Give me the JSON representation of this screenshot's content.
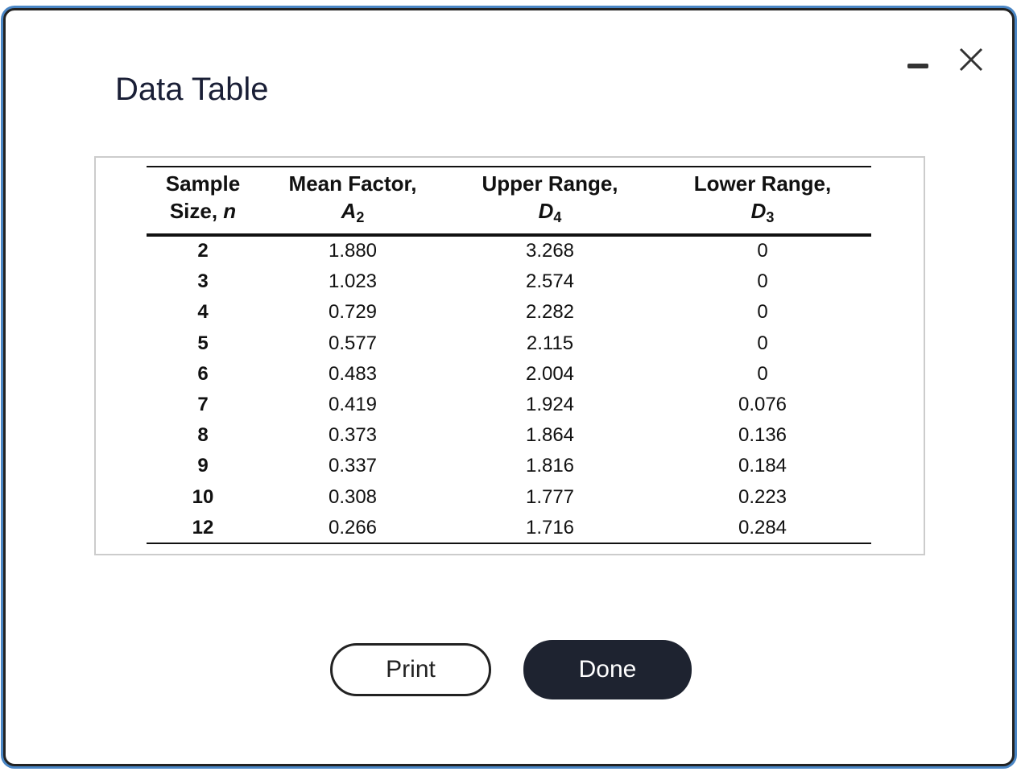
{
  "dialog": {
    "title": "Data Table",
    "table": {
      "headers": [
        {
          "lines": [
            "Sample",
            "Size,"
          ],
          "symbol": "n"
        },
        {
          "lines": [
            "Mean Factor,"
          ],
          "symbol": "A",
          "subscript": "2"
        },
        {
          "lines": [
            "Upper Range,"
          ],
          "symbol": "D",
          "subscript": "4"
        },
        {
          "lines": [
            "Lower Range,"
          ],
          "symbol": "D",
          "subscript": "3"
        }
      ],
      "rows": [
        [
          "2",
          "1.880",
          "3.268",
          "0"
        ],
        [
          "3",
          "1.023",
          "2.574",
          "0"
        ],
        [
          "4",
          "0.729",
          "2.282",
          "0"
        ],
        [
          "5",
          "0.577",
          "2.115",
          "0"
        ],
        [
          "6",
          "0.483",
          "2.004",
          "0"
        ],
        [
          "7",
          "0.419",
          "1.924",
          "0.076"
        ],
        [
          "8",
          "0.373",
          "1.864",
          "0.136"
        ],
        [
          "9",
          "0.337",
          "1.816",
          "0.184"
        ],
        [
          "10",
          "0.308",
          "1.777",
          "0.223"
        ],
        [
          "12",
          "0.266",
          "1.716",
          "0.284"
        ]
      ]
    },
    "buttons": [
      "Print",
      "Done"
    ]
  }
}
